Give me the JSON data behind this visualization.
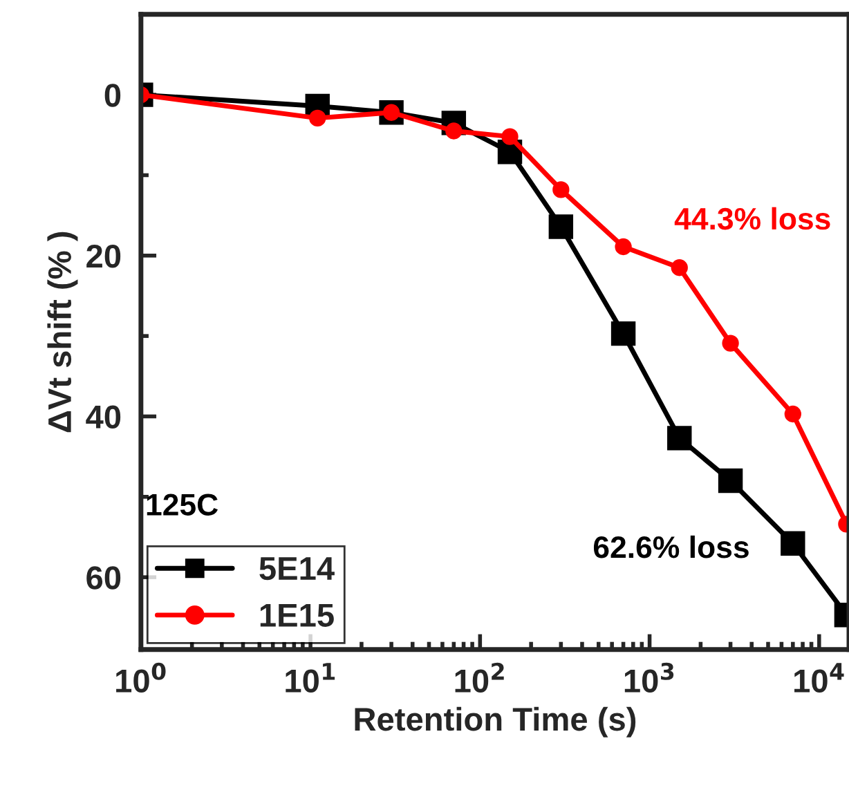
{
  "chart_data": {
    "type": "line",
    "xlabel": "Retention Time (s)",
    "ylabel": "ΔVt shift (% )",
    "log": "x",
    "xlim": [
      1,
      15000
    ],
    "xticks": [
      {
        "value": 1,
        "label": "10$^{0}$"
      },
      {
        "value": 10,
        "label": "10$^{1}$"
      },
      {
        "value": 100,
        "label": "10$^{2}$"
      },
      {
        "value": 1000,
        "label": "10$^{3}$"
      },
      {
        "value": 10000,
        "label": "10$^{4}$"
      }
    ],
    "ylim": [
      69,
      -10
    ],
    "yticks": [
      0,
      20,
      40,
      60
    ],
    "grid": false,
    "legend": "bottom left",
    "series": [
      {
        "name": "5E14",
        "color": "#000000",
        "marker": "square",
        "x": [
          1,
          11,
          30,
          70,
          150,
          300,
          700,
          1500,
          3000,
          7000,
          14500
        ],
        "values": [
          0,
          1.4,
          2.2,
          3.5,
          7.1,
          16.4,
          29.7,
          42.7,
          48,
          55.8,
          64.7
        ]
      },
      {
        "name": "1E15",
        "color": "#ff0000",
        "marker": "circle",
        "x": [
          1,
          11,
          30,
          70,
          150,
          300,
          700,
          1500,
          3000,
          7000,
          14500
        ],
        "values": [
          0,
          2.9,
          2.2,
          4.5,
          5.2,
          11.8,
          18.9,
          21.5,
          30.9,
          39.7,
          53.4
        ]
      }
    ],
    "annotations": [
      "44.3% loss",
      "62.6% loss",
      "125C"
    ]
  }
}
